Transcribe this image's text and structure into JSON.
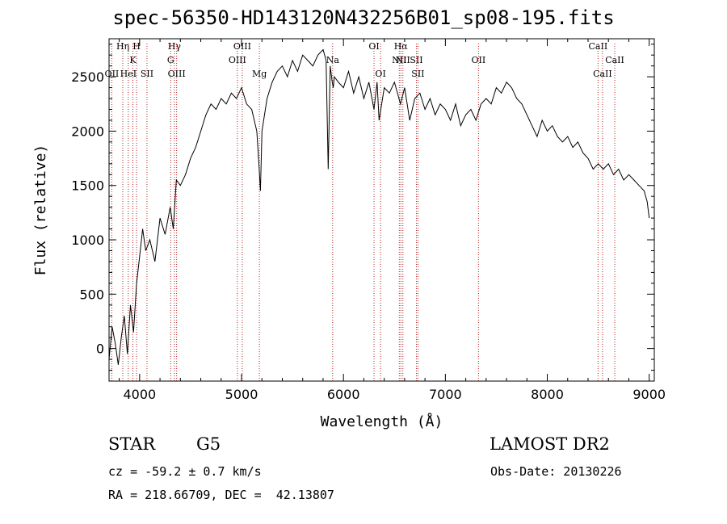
{
  "chart_data": {
    "type": "line",
    "title": "spec-56350-HD143120N432256B01_sp08-195.fits",
    "xlabel": "Wavelength (Å)",
    "ylabel": "Flux (relative)",
    "xlim": [
      3700,
      9050
    ],
    "ylim": [
      -300,
      2850
    ],
    "xticks": [
      4000,
      5000,
      6000,
      7000,
      8000,
      9000
    ],
    "yticks": [
      0,
      500,
      1000,
      1500,
      2000,
      2500
    ],
    "grid": false,
    "series": [
      {
        "x": [
          3700,
          3730,
          3760,
          3790,
          3820,
          3850,
          3880,
          3910,
          3940,
          3970,
          4000,
          4030,
          4060,
          4100,
          4150,
          4200,
          4250,
          4300,
          4330,
          4360,
          4400,
          4450,
          4500,
          4550,
          4600,
          4650,
          4700,
          4750,
          4800,
          4850,
          4900,
          4950,
          5000,
          5050,
          5100,
          5150,
          5170,
          5185,
          5200,
          5250,
          5300,
          5350,
          5400,
          5450,
          5500,
          5550,
          5600,
          5650,
          5700,
          5750,
          5800,
          5830,
          5850,
          5870,
          5890,
          5900,
          5910,
          5950,
          6000,
          6050,
          6100,
          6150,
          6200,
          6250,
          6300,
          6330,
          6350,
          6400,
          6450,
          6500,
          6560,
          6600,
          6650,
          6700,
          6750,
          6800,
          6850,
          6900,
          6950,
          7000,
          7050,
          7100,
          7150,
          7200,
          7250,
          7300,
          7350,
          7400,
          7450,
          7500,
          7550,
          7600,
          7650,
          7700,
          7750,
          7800,
          7850,
          7900,
          7950,
          8000,
          8050,
          8100,
          8150,
          8200,
          8250,
          8300,
          8350,
          8400,
          8450,
          8500,
          8550,
          8600,
          8650,
          8700,
          8750,
          8800,
          8850,
          8900,
          8950,
          8980,
          9000
        ],
        "y": [
          -100,
          200,
          50,
          -150,
          100,
          300,
          -50,
          400,
          150,
          600,
          850,
          1100,
          900,
          1000,
          800,
          1200,
          1050,
          1300,
          1100,
          1550,
          1500,
          1600,
          1750,
          1850,
          2000,
          2150,
          2250,
          2200,
          2300,
          2250,
          2350,
          2300,
          2400,
          2250,
          2200,
          2000,
          1700,
          1450,
          2000,
          2300,
          2450,
          2550,
          2600,
          2500,
          2650,
          2550,
          2700,
          2650,
          2600,
          2700,
          2750,
          2650,
          1650,
          2600,
          2450,
          2400,
          2500,
          2450,
          2400,
          2550,
          2350,
          2500,
          2300,
          2450,
          2200,
          2450,
          2100,
          2400,
          2350,
          2450,
          2250,
          2400,
          2100,
          2300,
          2350,
          2200,
          2300,
          2150,
          2250,
          2200,
          2100,
          2250,
          2050,
          2150,
          2200,
          2100,
          2250,
          2300,
          2250,
          2400,
          2350,
          2450,
          2400,
          2300,
          2250,
          2150,
          2050,
          1950,
          2100,
          2000,
          2050,
          1950,
          1900,
          1950,
          1850,
          1900,
          1800,
          1750,
          1650,
          1700,
          1650,
          1700,
          1600,
          1650,
          1550,
          1600,
          1550,
          1500,
          1450,
          1350,
          1200
        ]
      }
    ],
    "lines": [
      {
        "x": 3727,
        "label": "OII",
        "row": 3
      },
      {
        "x": 3835,
        "label": "Hη",
        "row": 1
      },
      {
        "x": 3889,
        "label": "HeI",
        "row": 3
      },
      {
        "x": 3934,
        "label": "K",
        "row": 2
      },
      {
        "x": 3970,
        "label": "H",
        "row": 1
      },
      {
        "x": 4072,
        "label": "SII",
        "row": 3
      },
      {
        "x": 4305,
        "label": "G",
        "row": 2
      },
      {
        "x": 4341,
        "label": "Hγ",
        "row": 1
      },
      {
        "x": 4363,
        "label": "OIII",
        "row": 3
      },
      {
        "x": 4959,
        "label": "OIII",
        "row": 2
      },
      {
        "x": 5007,
        "label": "OIII",
        "row": 1
      },
      {
        "x": 5175,
        "label": "Mg",
        "row": 4
      },
      {
        "x": 5894,
        "label": "Na",
        "row": 2
      },
      {
        "x": 6300,
        "label": "OI",
        "row": 1
      },
      {
        "x": 6364,
        "label": "OI",
        "row": 4
      },
      {
        "x": 6548,
        "label": "NII",
        "row": 2
      },
      {
        "x": 6563,
        "label": "Hα",
        "row": 1
      },
      {
        "x": 6583,
        "label": "NII",
        "row": 2
      },
      {
        "x": 6716,
        "label": "SII",
        "row": 2
      },
      {
        "x": 6731,
        "label": "SII",
        "row": 4
      },
      {
        "x": 7325,
        "label": "OII",
        "row": 2
      },
      {
        "x": 8498,
        "label": "CaII",
        "row": 1
      },
      {
        "x": 8542,
        "label": "CaII",
        "row": 3
      },
      {
        "x": 8662,
        "label": "CaII",
        "row": 2
      }
    ]
  },
  "info": {
    "object_class": "STAR",
    "subclass": "G5",
    "survey": "LAMOST DR2",
    "redshift_line": "cz = -59.2 ± 0.7 km/s",
    "obs_date_line": "Obs-Date: 20130226",
    "coords_line": "RA = 218.66709, DEC =  42.13807"
  },
  "colors": {
    "spectrum": "#000000",
    "line_markers": "#b22222",
    "axes": "#000000"
  }
}
